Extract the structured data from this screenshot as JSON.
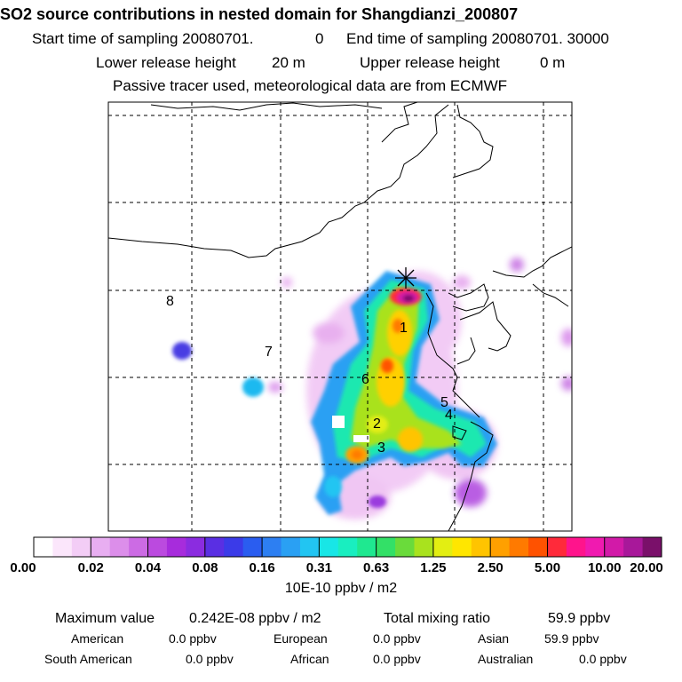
{
  "header": {
    "title": "SO2 source contributions in nested domain for Shangdianzi_200807",
    "start_label": "Start time of sampling 20080701.",
    "start_hour": "0",
    "end_label": "End time of sampling 20080701. 30000",
    "lower_label": "Lower release height",
    "lower_value": "20 m",
    "upper_label": "Upper release height",
    "upper_value": "0 m",
    "note": "Passive tracer used, meteorological data are from ECMWF"
  },
  "map": {
    "site_markers": [
      "1",
      "2",
      "3",
      "4",
      "5",
      "6",
      "7",
      "8"
    ],
    "receptor_icon": "asterisk-star-icon"
  },
  "legend": {
    "labels": [
      "0.00",
      "0.02",
      "0.04",
      "0.08",
      "0.16",
      "0.31",
      "0.63",
      "1.25",
      "2.50",
      "5.00",
      "10.00",
      "20.00"
    ],
    "units": "10E-10 ppbv / m2",
    "colors": [
      "#ffffff",
      "#fbe6fb",
      "#f3cdf6",
      "#e8aef1",
      "#dc8eea",
      "#cc6be4",
      "#bb4adf",
      "#a72cdc",
      "#8b2ce0",
      "#5a2fe3",
      "#3b3be8",
      "#2a5df0",
      "#2d7ff2",
      "#2aa0f3",
      "#22c5f2",
      "#18e6e6",
      "#19eec0",
      "#1fe890",
      "#33e067",
      "#6adb3b",
      "#a9e21e",
      "#e3ee12",
      "#ffe600",
      "#ffc400",
      "#ffa000",
      "#ff7a00",
      "#ff5200",
      "#ff2a3a",
      "#ff148c",
      "#f01ab0",
      "#d21aa8",
      "#a8189a",
      "#7a106a"
    ]
  },
  "stats": {
    "max_label": "Maximum value",
    "max_value": "0.242E-08 ppbv / m2",
    "total_label": "Total mixing ratio",
    "total_value": "59.9 ppbv",
    "regions": [
      {
        "name": "American",
        "value": "0.0 ppbv"
      },
      {
        "name": "European",
        "value": "0.0 ppbv"
      },
      {
        "name": "Asian",
        "value": "59.9 ppbv"
      },
      {
        "name": "South American",
        "value": "0.0 ppbv"
      },
      {
        "name": "African",
        "value": "0.0 ppbv"
      },
      {
        "name": "Australian",
        "value": "0.0 ppbv"
      }
    ]
  }
}
